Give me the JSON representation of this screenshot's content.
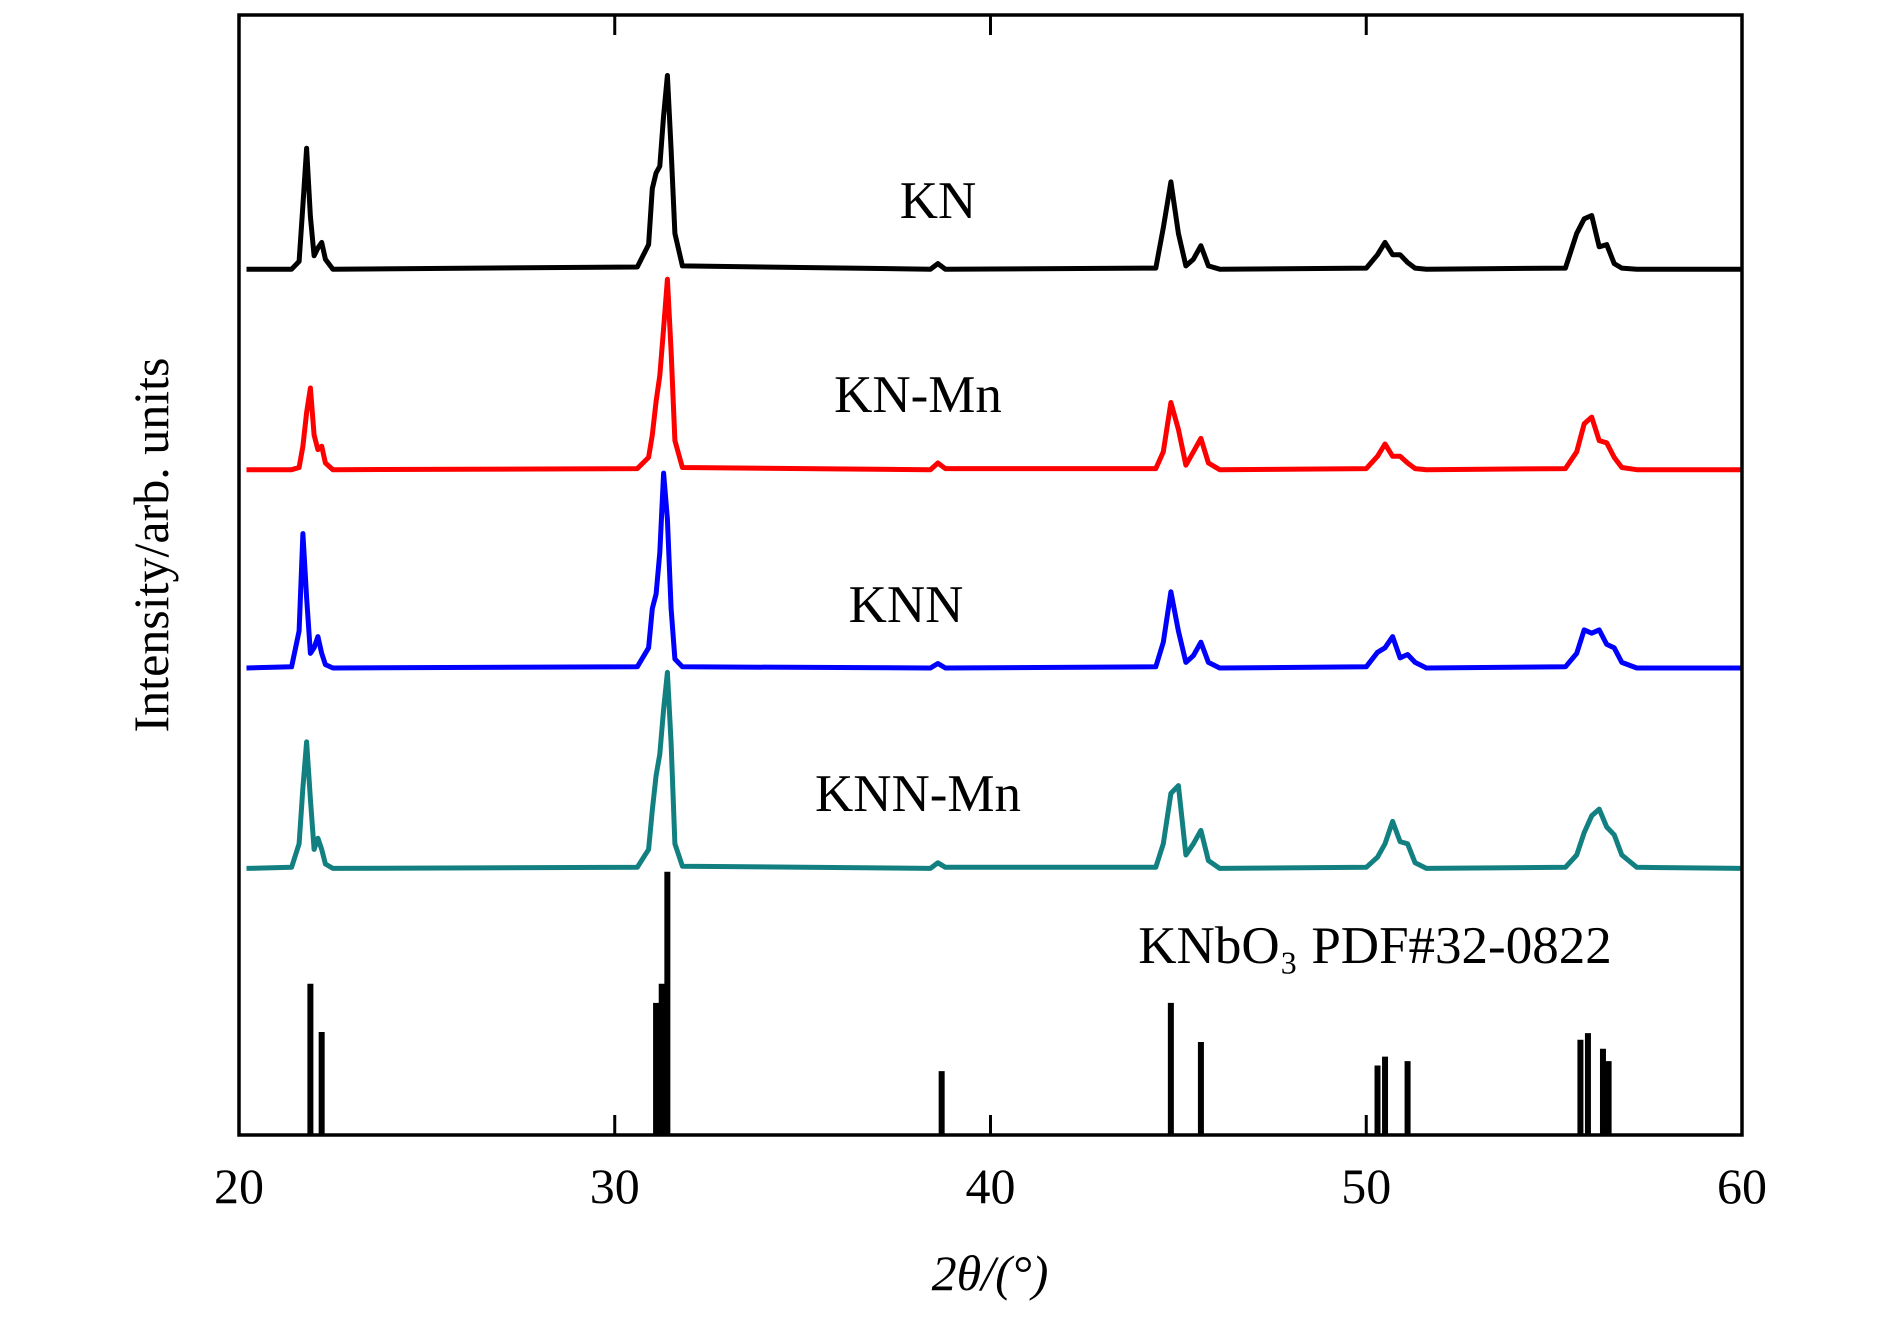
{
  "chart_data": {
    "type": "line",
    "xlabel": "2θ/(°)",
    "ylabel": "Intensity/arb. units",
    "xlim": [
      20,
      60
    ],
    "xticks": [
      20,
      30,
      40,
      50,
      60
    ],
    "ylim": [
      0,
      100
    ],
    "grid": false,
    "x": [
      20.2,
      21.4,
      21.6,
      21.7,
      21.8,
      21.9,
      22.0,
      22.1,
      22.2,
      22.3,
      22.5,
      30.6,
      30.9,
      31.0,
      31.1,
      31.2,
      31.3,
      31.4,
      31.5,
      31.6,
      31.8,
      38.4,
      38.6,
      38.8,
      44.4,
      44.6,
      44.8,
      45.0,
      45.2,
      45.4,
      45.6,
      45.8,
      46.1,
      50.0,
      50.3,
      50.5,
      50.7,
      50.9,
      51.1,
      51.3,
      51.6,
      55.3,
      55.6,
      55.8,
      56.0,
      56.2,
      56.4,
      56.6,
      56.8,
      57.2,
      60.0
    ],
    "series": [
      {
        "name": "KN",
        "color": "#000000",
        "values": [
          77.3,
          77.3,
          78.0,
          83,
          88.1,
          82,
          78.5,
          79.2,
          79.7,
          78.2,
          77.3,
          77.5,
          79.5,
          84.5,
          85.9,
          86.5,
          91,
          94.6,
          88,
          80.5,
          77.6,
          77.3,
          77.8,
          77.3,
          77.4,
          81,
          85.1,
          80.5,
          77.6,
          78.2,
          79.4,
          77.6,
          77.3,
          77.4,
          78.6,
          79.7,
          78.6,
          78.6,
          77.9,
          77.4,
          77.3,
          77.4,
          80.5,
          81.8,
          82.1,
          79.3,
          79.5,
          77.8,
          77.4,
          77.3,
          77.3
        ]
      },
      {
        "name": "KN-Mn",
        "color": "#ff0000",
        "values": [
          59.4,
          59.4,
          59.6,
          61.5,
          64.5,
          66.7,
          62.5,
          61.2,
          61.5,
          60.0,
          59.4,
          59.5,
          60.5,
          62.5,
          65.5,
          67.8,
          72,
          76.4,
          70,
          62,
          59.6,
          59.4,
          60.0,
          59.5,
          59.5,
          61,
          65.4,
          63,
          59.8,
          61,
          62.2,
          60.0,
          59.4,
          59.5,
          60.6,
          61.7,
          60.6,
          60.6,
          60.0,
          59.5,
          59.4,
          59.5,
          61,
          63.5,
          64.1,
          62,
          61.8,
          60.5,
          59.6,
          59.4,
          59.4
        ]
      },
      {
        "name": "KNN",
        "color": "#0000ff",
        "values": [
          41.7,
          41.8,
          45,
          53.7,
          48,
          43,
          43.5,
          44.5,
          43,
          42.0,
          41.7,
          41.8,
          43.5,
          47,
          48.3,
          52,
          59.1,
          55,
          47,
          42.5,
          41.8,
          41.7,
          42.1,
          41.7,
          41.8,
          44,
          48.5,
          45,
          42.2,
          42.8,
          44.0,
          42.2,
          41.7,
          41.8,
          43.1,
          43.5,
          44.5,
          42.6,
          42.9,
          42.2,
          41.7,
          41.8,
          43,
          45.1,
          44.8,
          45.1,
          43.8,
          43.5,
          42.2,
          41.7,
          41.7
        ]
      },
      {
        "name": "KNN-Mn",
        "color": "#128080",
        "values": [
          23.8,
          23.9,
          26,
          31,
          35.1,
          30,
          25.5,
          26.5,
          25.5,
          24.2,
          23.8,
          23.9,
          25.5,
          29,
          32.1,
          34,
          38,
          41.3,
          35,
          26,
          24.0,
          23.8,
          24.3,
          23.9,
          23.9,
          26,
          30.5,
          31.2,
          25,
          26,
          27.2,
          24.5,
          23.8,
          23.9,
          24.8,
          26,
          28.0,
          26.2,
          26.0,
          24.3,
          23.8,
          23.9,
          25,
          27,
          28.5,
          29.1,
          27.5,
          26.8,
          25,
          23.9,
          23.8
        ]
      }
    ],
    "reference": {
      "name": "KNbO₃ PDF#32-0822",
      "color": "#000000",
      "x": [
        21.9,
        22.2,
        31.1,
        31.25,
        31.4,
        38.7,
        44.8,
        45.6,
        50.3,
        50.5,
        51.1,
        55.7,
        55.9,
        56.3,
        56.45
      ],
      "values": [
        13.5,
        9.2,
        11.8,
        13.5,
        23.5,
        5.7,
        11.8,
        8.3,
        6.2,
        7.0,
        6.6,
        8.5,
        9.1,
        7.7,
        6.6
      ]
    }
  }
}
